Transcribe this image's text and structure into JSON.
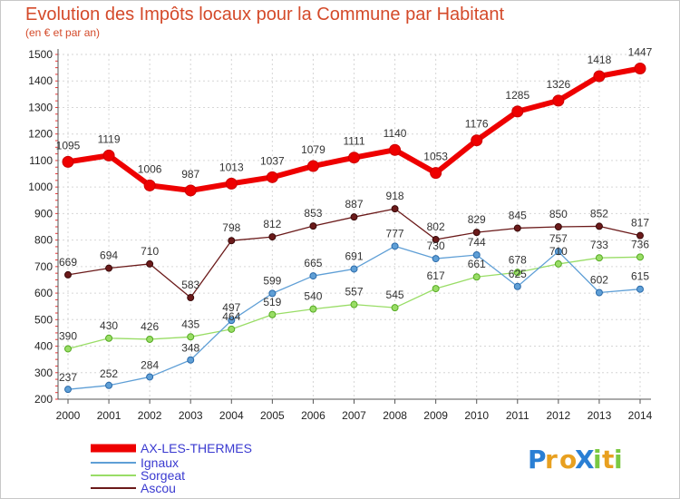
{
  "chart_data": {
    "type": "line",
    "title": "Evolution des Impôts locaux pour la Commune par Habitant",
    "subtitle": "(en € et par an)",
    "categories": [
      "2000",
      "2001",
      "2002",
      "2003",
      "2004",
      "2005",
      "2006",
      "2007",
      "2008",
      "2009",
      "2010",
      "2011",
      "2012",
      "2013",
      "2014"
    ],
    "ylim": [
      200,
      1500
    ],
    "yticks": [
      200,
      300,
      400,
      500,
      600,
      700,
      800,
      900,
      1000,
      1100,
      1200,
      1300,
      1400,
      1500
    ],
    "grid": true,
    "legend_position": "bottom-left",
    "series": [
      {
        "name": "AX-LES-THERMES",
        "color": "#ee0000",
        "values": [
          1095,
          1119,
          1006,
          987,
          1013,
          1037,
          1079,
          1111,
          1140,
          1053,
          1176,
          1285,
          1326,
          1418,
          1447
        ]
      },
      {
        "name": "Ignaux",
        "color": "#5f9fd6",
        "values": [
          237,
          252,
          284,
          348,
          497,
          599,
          665,
          691,
          777,
          730,
          744,
          625,
          757,
          602,
          615
        ]
      },
      {
        "name": "Sorgeat",
        "color": "#99dd66",
        "values": [
          390,
          430,
          426,
          435,
          464,
          519,
          540,
          557,
          545,
          617,
          661,
          678,
          710,
          733,
          736
        ]
      },
      {
        "name": "Ascou",
        "color": "#6b1a1a",
        "values": [
          669,
          694,
          710,
          583,
          798,
          812,
          853,
          887,
          918,
          802,
          829,
          845,
          850,
          852,
          817
        ]
      }
    ]
  },
  "logo": {
    "text": "ProXiti",
    "letters": [
      "P",
      "r",
      "o",
      "X",
      "i",
      "t",
      "i"
    ]
  }
}
